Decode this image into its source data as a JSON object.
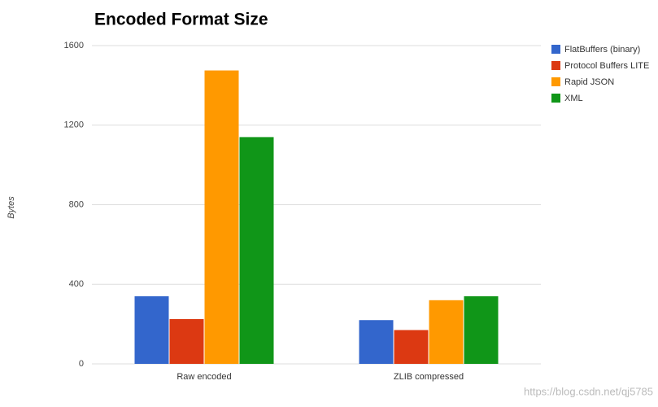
{
  "chart_data": {
    "type": "bar",
    "title": "Encoded Format Size",
    "y_label": "Bytes",
    "categories": [
      "Raw encoded",
      "ZLIB compressed"
    ],
    "series": [
      {
        "name": "FlatBuffers (binary)",
        "color": "#3366cc",
        "values": [
          340,
          220
        ]
      },
      {
        "name": "Protocol Buffers LITE",
        "color": "#dc3912",
        "values": [
          225,
          170
        ]
      },
      {
        "name": "Rapid JSON",
        "color": "#ff9900",
        "values": [
          1475,
          320
        ]
      },
      {
        "name": "XML",
        "color": "#109618",
        "values": [
          1140,
          340
        ]
      }
    ],
    "ylim": [
      0,
      1600
    ],
    "yticks": [
      0,
      400,
      800,
      1200,
      1600
    ],
    "grid": true,
    "legend": "right",
    "watermark": "https://blog.csdn.net/qj5785"
  }
}
